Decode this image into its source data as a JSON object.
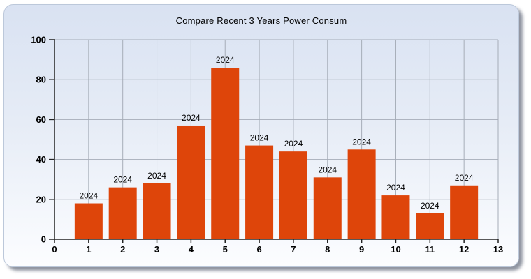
{
  "chart_data": {
    "type": "bar",
    "title": "Compare Recent 3 Years Power Consum",
    "categories": [
      1,
      2,
      3,
      4,
      5,
      6,
      7,
      8,
      9,
      10,
      11,
      12
    ],
    "series": [
      {
        "name": "2024",
        "point_label": "2024",
        "color": "#de450a",
        "values": [
          18,
          26,
          28,
          57,
          86,
          47,
          44,
          31,
          45,
          22,
          13,
          27
        ]
      }
    ],
    "xlabel": "",
    "ylabel": "",
    "xlim": [
      0,
      13
    ],
    "ylim": [
      0,
      100
    ],
    "x_ticks": [
      0,
      1,
      2,
      3,
      4,
      5,
      6,
      7,
      8,
      9,
      10,
      11,
      12,
      13
    ],
    "y_ticks": [
      0,
      20,
      40,
      60,
      80,
      100
    ],
    "grid": true,
    "legend": false,
    "axis_color": "#222222",
    "grid_color": "#a6adb8",
    "label_color": "#000000",
    "panel_colors": {
      "background_top": "#d9e2f2",
      "background_bottom": "#fcfdff",
      "border": "#bcc8da",
      "shadow": "#6a7080"
    }
  }
}
